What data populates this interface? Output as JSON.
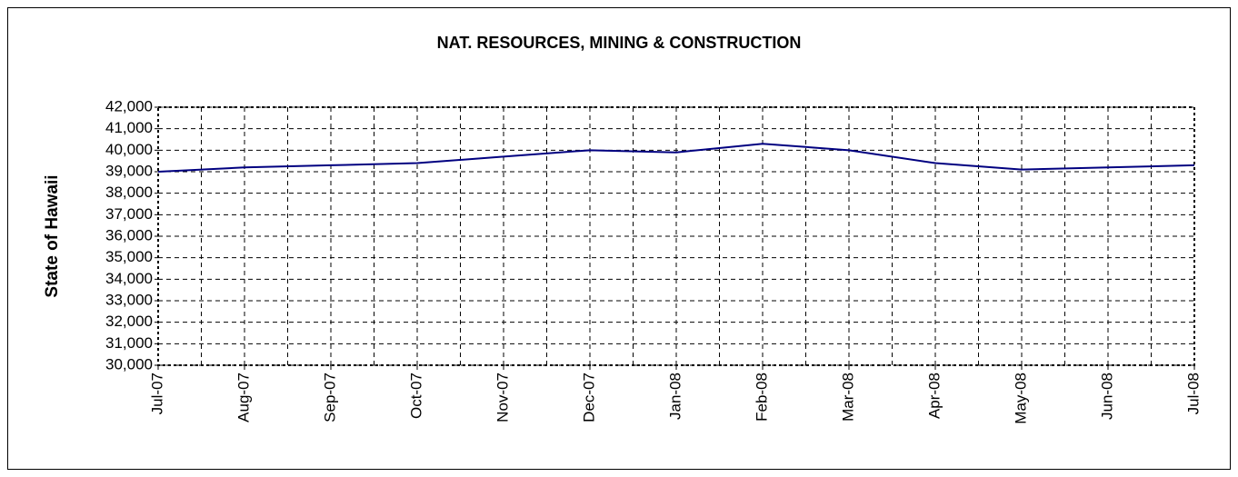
{
  "chart_data": {
    "type": "line",
    "title": "NAT. RESOURCES, MINING & CONSTRUCTION",
    "y_label": "State of Hawaii",
    "categories": [
      "Jul-07",
      "Aug-07",
      "Sep-07",
      "Oct-07",
      "Nov-07",
      "Dec-07",
      "Jan-08",
      "Feb-08",
      "Mar-08",
      "Apr-08",
      "May-08",
      "Jun-08",
      "Jul-08"
    ],
    "series": [
      {
        "name": "State of Hawaii",
        "color": "#000080",
        "values": [
          39000,
          39200,
          39300,
          39400,
          39700,
          40000,
          39900,
          40300,
          40000,
          39400,
          39100,
          39200,
          39300
        ]
      }
    ],
    "ylim": [
      30000,
      42000
    ],
    "yticks": [
      {
        "value": 30000,
        "label": "30,000"
      },
      {
        "value": 31000,
        "label": "31,000"
      },
      {
        "value": 32000,
        "label": "32,000"
      },
      {
        "value": 33000,
        "label": "33,000"
      },
      {
        "value": 34000,
        "label": "34,000"
      },
      {
        "value": 35000,
        "label": "35,000"
      },
      {
        "value": 36000,
        "label": "36,000"
      },
      {
        "value": 37000,
        "label": "37,000"
      },
      {
        "value": 38000,
        "label": "38,000"
      },
      {
        "value": 39000,
        "label": "39,000"
      },
      {
        "value": 40000,
        "label": "40,000"
      },
      {
        "value": 41000,
        "label": "41,000"
      },
      {
        "value": 42000,
        "label": "42,000"
      }
    ],
    "grid": true
  }
}
